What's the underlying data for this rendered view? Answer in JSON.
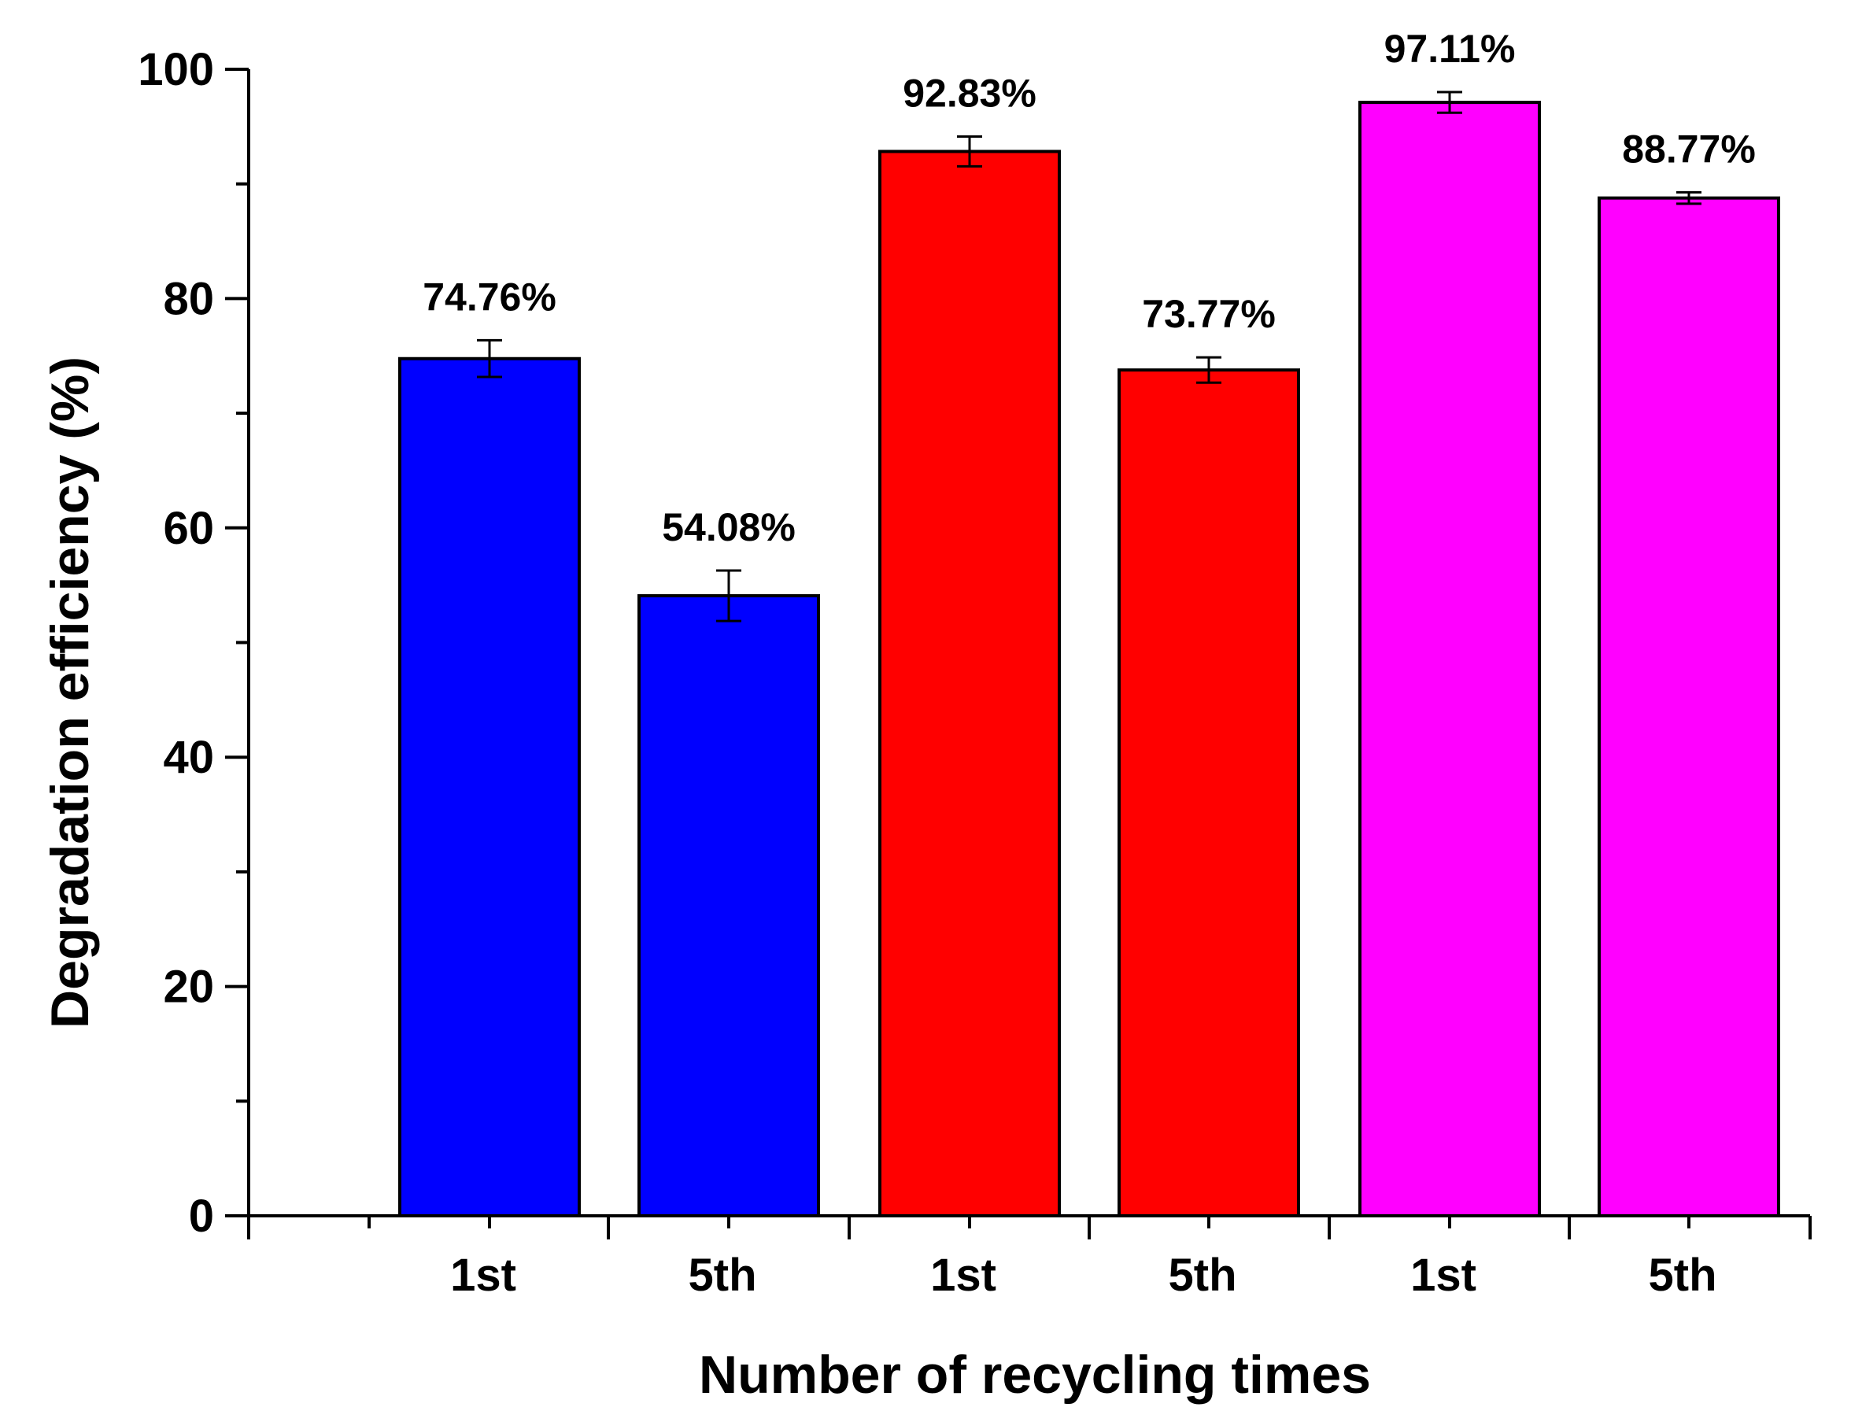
{
  "chart_data": {
    "type": "bar",
    "xlabel": "Number of recycling times",
    "ylabel": "Degradation efficiency (%)",
    "ylim": [
      0,
      100
    ],
    "y_ticks": [
      0,
      20,
      40,
      60,
      80,
      100
    ],
    "y_minor_step": 10,
    "grid": false,
    "legend": "none",
    "categories": [
      "1st",
      "5th",
      "1st",
      "5th",
      "1st",
      "5th"
    ],
    "values": [
      74.76,
      54.08,
      92.83,
      73.77,
      97.11,
      88.77
    ],
    "errors": [
      1.6,
      2.2,
      1.3,
      1.1,
      0.9,
      0.5
    ],
    "data_labels": [
      "74.76%",
      "54.08%",
      "92.83%",
      "73.77%",
      "97.11%",
      "88.77%"
    ],
    "colors": [
      "#0000ff",
      "#0000ff",
      "#ff0000",
      "#ff0000",
      "#ff00ff",
      "#ff00ff"
    ]
  }
}
